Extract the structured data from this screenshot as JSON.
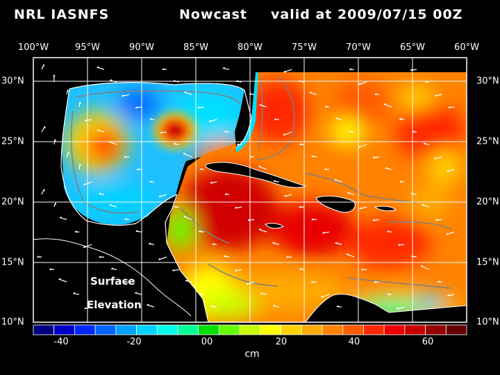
{
  "header": {
    "model": "NRL IASNFS",
    "run": "Nowcast",
    "valid": "valid at 2009/07/15 00Z"
  },
  "map": {
    "lon_labels": [
      "100°W",
      "95°W",
      "90°W",
      "85°W",
      "80°W",
      "75°W",
      "70°W",
      "65°W",
      "60°W"
    ],
    "lat_labels": [
      "30°N",
      "25°N",
      "20°N",
      "15°N",
      "10°N"
    ],
    "field_label_line1": "Surface",
    "field_label_line2": "Elevation",
    "ocean_colors": {
      "gulf_low": "#1fbfff",
      "gulf_mid": "#00e0ff",
      "eddy_high": "#ff4000",
      "caribbean_high": "#e00000",
      "atlantic_mid": "#ff8000",
      "land": "#000000"
    }
  },
  "colorbar": {
    "ticks": [
      "-40",
      "-20",
      "00",
      "20",
      "40",
      "60"
    ],
    "unit": "cm",
    "colors": [
      "#000080",
      "#0000c8",
      "#0028ff",
      "#0064ff",
      "#00a0ff",
      "#00d2ff",
      "#00ffe6",
      "#00ff96",
      "#00e100",
      "#64ff00",
      "#c8ff00",
      "#ffff00",
      "#ffd200",
      "#ffaa00",
      "#ff8200",
      "#ff5a00",
      "#ff2800",
      "#f00000",
      "#c80000",
      "#960000",
      "#640000"
    ]
  }
}
